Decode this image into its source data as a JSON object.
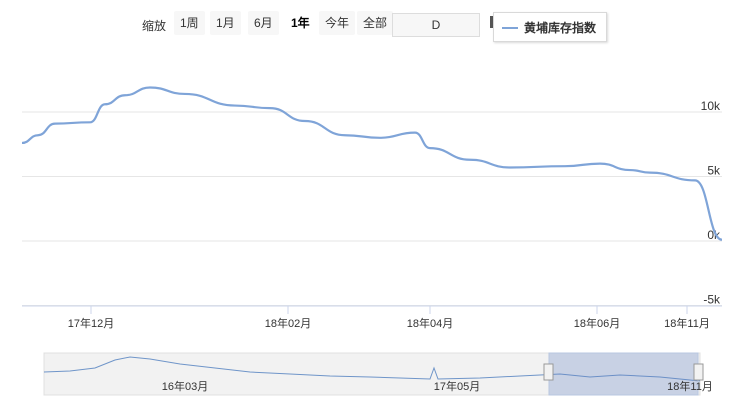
{
  "toolbar": {
    "zoom_label": "缩放",
    "buttons": [
      "1周",
      "1月",
      "6月",
      "1年",
      "今年",
      "全部"
    ],
    "active": "1年",
    "range_value": "D"
  },
  "chart_data": {
    "type": "line",
    "title": "",
    "xlabel": "",
    "ylabel": "",
    "ylim": [
      -5000,
      15000
    ],
    "y_ticks": [
      {
        "value": 10000,
        "label": "10k"
      },
      {
        "value": 5000,
        "label": "5k"
      },
      {
        "value": 0,
        "label": "0k"
      },
      {
        "value": -5000,
        "label": "-5k"
      }
    ],
    "x_ticks": [
      "17年12月",
      "18年02月",
      "18年04月",
      "18年06月",
      "18年11月"
    ],
    "legend": "top-right",
    "grid": true,
    "color": "#7fa4d8",
    "series": [
      {
        "name": "黄埔库存指数",
        "x": [
          "17年11月",
          "17年11月中",
          "17年12月",
          "17年12月中",
          "17年12月下",
          "18年01月",
          "18年01月中",
          "18年01月下",
          "18年02月",
          "18年02月中",
          "18年03月",
          "18年03月中",
          "18年04月",
          "18年04月中",
          "18年05月",
          "18年05月中",
          "18年06月",
          "18年07月",
          "18年08月",
          "18年09月",
          "18年10月",
          "18年10月下",
          "18年11月"
        ],
        "values": [
          7600,
          8200,
          9100,
          9200,
          10600,
          11300,
          11900,
          11400,
          10500,
          10300,
          9300,
          8200,
          8000,
          8400,
          7200,
          6300,
          5700,
          5800,
          6000,
          5500,
          5300,
          4700,
          100
        ]
      }
    ]
  },
  "navigator": {
    "labels": [
      "16年03月",
      "17年05月",
      "18年11月"
    ]
  }
}
